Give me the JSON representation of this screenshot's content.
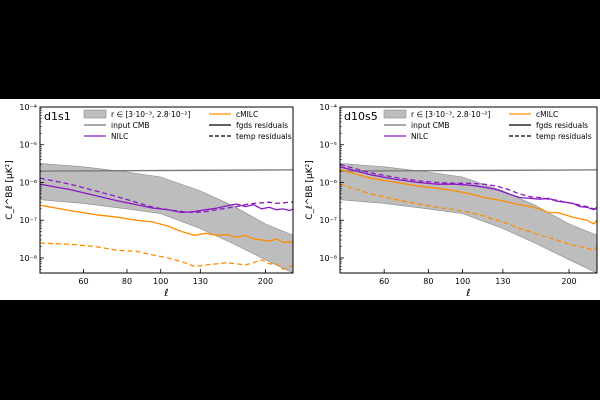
{
  "chart_data": [
    {
      "type": "line",
      "panel_label": "d1s1",
      "xscale": "log",
      "yscale": "log",
      "xlim": [
        45,
        240
      ],
      "ylim": [
        4e-09,
        0.0001
      ],
      "xticks": [
        {
          "value": 60,
          "label": "60"
        },
        {
          "value": 80,
          "label": "80"
        },
        {
          "value": 100,
          "label": "100"
        },
        {
          "value": 130,
          "label": "130"
        },
        {
          "value": 200,
          "label": "200"
        }
      ],
      "yticks": [
        {
          "value": 1e-08,
          "label": "10⁻⁸"
        },
        {
          "value": 1e-07,
          "label": "10⁻⁷"
        },
        {
          "value": 1e-06,
          "label": "10⁻⁶"
        },
        {
          "value": 1e-05,
          "label": "10⁻⁵"
        },
        {
          "value": 0.0001,
          "label": "10⁻⁴"
        }
      ],
      "xlabel": "ℓ",
      "ylabel": "C_ℓ^BB [μK²]",
      "band": {
        "name": "r ∈ [3·10⁻³, 2.8·10⁻²]",
        "x": [
          45,
          60,
          80,
          100,
          130,
          160,
          200,
          240
        ],
        "upper": [
          3.2e-06,
          2.6e-06,
          1.9e-06,
          1.4e-06,
          6e-07,
          2.5e-07,
          8e-08,
          4e-08
        ],
        "lower": [
          3.5e-07,
          2.8e-07,
          2e-07,
          1.5e-07,
          6e-08,
          2.5e-08,
          9e-09,
          4e-09
        ]
      },
      "series": [
        {
          "name": "input CMB",
          "color": "#777777",
          "dash": "solid",
          "x": [
            45,
            240
          ],
          "y": [
            2e-06,
            2.15e-06
          ]
        },
        {
          "name": "NILC",
          "color": "#8b1ac4",
          "dash": "solid",
          "x": [
            45,
            55,
            65,
            75,
            85,
            95,
            105,
            115,
            125,
            135,
            145,
            155,
            165,
            175,
            185,
            195,
            205,
            215,
            225,
            235,
            240
          ],
          "y": [
            9e-07,
            6.5e-07,
            4.5e-07,
            3.3e-07,
            2.6e-07,
            2.1e-07,
            1.9e-07,
            1.6e-07,
            1.7e-07,
            1.9e-07,
            2.1e-07,
            2.4e-07,
            2.7e-07,
            2.3e-07,
            2.6e-07,
            2e-07,
            2.2e-07,
            1.9e-07,
            2e-07,
            1.8e-07,
            2e-07
          ]
        },
        {
          "name": "cMILC",
          "color": "#ff8c00",
          "dash": "solid",
          "x": [
            45,
            55,
            65,
            75,
            85,
            95,
            105,
            115,
            125,
            135,
            145,
            155,
            165,
            175,
            185,
            195,
            205,
            215,
            225,
            235,
            240
          ],
          "y": [
            2.5e-07,
            1.8e-07,
            1.4e-07,
            1.2e-07,
            1e-07,
            9e-08,
            7e-08,
            5e-08,
            4e-08,
            4.5e-08,
            4e-08,
            4.2e-08,
            3.5e-08,
            4e-08,
            3.2e-08,
            3e-08,
            2.8e-08,
            3.2e-08,
            2.6e-08,
            2.7e-08,
            2.5e-08
          ]
        },
        {
          "name": "NILC temp residuals",
          "color": "#8b1ac4",
          "dash": "dashed",
          "x": [
            45,
            55,
            65,
            75,
            85,
            95,
            105,
            115,
            125,
            135,
            145,
            155,
            165,
            175,
            185,
            195,
            205,
            215,
            225,
            235,
            240
          ],
          "y": [
            1.3e-06,
            9e-07,
            6e-07,
            4.2e-07,
            3e-07,
            2.2e-07,
            1.9e-07,
            1.7e-07,
            1.6e-07,
            1.7e-07,
            1.9e-07,
            2.1e-07,
            2.3e-07,
            2.6e-07,
            2.8e-07,
            2.9e-07,
            3e-07,
            2.8e-07,
            2.9e-07,
            3e-07,
            3e-07
          ]
        },
        {
          "name": "cMILC temp residuals",
          "color": "#ff8c00",
          "dash": "dashed",
          "x": [
            45,
            55,
            65,
            75,
            85,
            95,
            105,
            115,
            125,
            135,
            145,
            155,
            165,
            175,
            185,
            195,
            205,
            215,
            225,
            235,
            240
          ],
          "y": [
            2.5e-08,
            2.3e-08,
            2e-08,
            1.6e-08,
            1.5e-08,
            1.2e-08,
            1e-08,
            8e-09,
            6e-09,
            6.5e-09,
            7e-09,
            7.5e-09,
            7e-09,
            6.5e-09,
            7.5e-09,
            9e-09,
            7e-09,
            7e-09,
            5e-09,
            6e-09,
            6e-09
          ]
        }
      ],
      "legend": [
        {
          "label": "r ∈ [3·10⁻³, 2.8·10⁻²]",
          "kind": "band"
        },
        {
          "label": "cMILC",
          "kind": "line",
          "color": "#ff8c00",
          "dash": "solid"
        },
        {
          "label": "input CMB",
          "kind": "line",
          "color": "#777777",
          "dash": "solid"
        },
        {
          "label": "fgds residuals",
          "kind": "line",
          "color": "#000000",
          "dash": "solid"
        },
        {
          "label": "NILC",
          "kind": "line",
          "color": "#8b1ac4",
          "dash": "solid"
        },
        {
          "label": "temp residuals",
          "kind": "line",
          "color": "#000000",
          "dash": "dashed"
        }
      ]
    },
    {
      "type": "line",
      "panel_label": "d10s5",
      "xscale": "log",
      "yscale": "log",
      "xlim": [
        45,
        240
      ],
      "ylim": [
        4e-09,
        0.0001
      ],
      "xticks": [
        {
          "value": 60,
          "label": "60"
        },
        {
          "value": 80,
          "label": "80"
        },
        {
          "value": 100,
          "label": "100"
        },
        {
          "value": 130,
          "label": "130"
        },
        {
          "value": 200,
          "label": "200"
        }
      ],
      "yticks": [
        {
          "value": 1e-08,
          "label": "10⁻⁸"
        },
        {
          "value": 1e-07,
          "label": "10⁻⁷"
        },
        {
          "value": 1e-06,
          "label": "10⁻⁶"
        },
        {
          "value": 1e-05,
          "label": "10⁻⁵"
        },
        {
          "value": 0.0001,
          "label": "10⁻⁴"
        }
      ],
      "xlabel": "ℓ",
      "ylabel": "C_ℓ^BB [μK²]",
      "band": {
        "name": "r ∈ [3·10⁻³, 2.8·10⁻²]",
        "x": [
          45,
          60,
          80,
          100,
          130,
          160,
          200,
          240
        ],
        "upper": [
          3.2e-06,
          2.6e-06,
          1.9e-06,
          1.4e-06,
          6e-07,
          2.5e-07,
          8e-08,
          4e-08
        ],
        "lower": [
          3.5e-07,
          2.8e-07,
          2e-07,
          1.5e-07,
          6e-08,
          2.5e-08,
          9e-09,
          4e-09
        ]
      },
      "series": [
        {
          "name": "input CMB",
          "color": "#777777",
          "dash": "solid",
          "x": [
            45,
            240
          ],
          "y": [
            2e-06,
            2.15e-06
          ]
        },
        {
          "name": "NILC",
          "color": "#8b1ac4",
          "dash": "solid",
          "x": [
            45,
            55,
            65,
            75,
            85,
            95,
            105,
            115,
            125,
            135,
            145,
            155,
            165,
            175,
            185,
            195,
            205,
            215,
            225,
            235,
            240
          ],
          "y": [
            2.6e-06,
            1.6e-06,
            1.2e-06,
            1e-06,
            9e-07,
            9e-07,
            8.5e-07,
            7.5e-07,
            6.5e-07,
            5e-07,
            4e-07,
            3.8e-07,
            3.6e-07,
            3.8e-07,
            3.2e-07,
            3e-07,
            2.8e-07,
            2.3e-07,
            2.2e-07,
            1.9e-07,
            2.2e-07
          ]
        },
        {
          "name": "cMILC",
          "color": "#ff8c00",
          "dash": "solid",
          "x": [
            45,
            55,
            65,
            75,
            85,
            95,
            105,
            115,
            125,
            135,
            145,
            155,
            165,
            175,
            185,
            195,
            205,
            215,
            225,
            235,
            240
          ],
          "y": [
            2.2e-06,
            1.3e-06,
            1e-06,
            8e-07,
            7e-07,
            6e-07,
            5e-07,
            4e-07,
            3.5e-07,
            3e-07,
            2.6e-07,
            2.3e-07,
            2e-07,
            1.6e-07,
            1.6e-07,
            1.4e-07,
            1.2e-07,
            1.1e-07,
            1e-07,
            8e-08,
            1e-07
          ]
        },
        {
          "name": "NILC temp residuals",
          "color": "#8b1ac4",
          "dash": "dashed",
          "x": [
            45,
            55,
            65,
            75,
            85,
            95,
            105,
            115,
            125,
            135,
            145,
            155,
            165,
            175,
            185,
            195,
            205,
            215,
            225,
            235,
            240
          ],
          "y": [
            3e-06,
            1.8e-06,
            1.35e-06,
            1.1e-06,
            1e-06,
            9.5e-07,
            9.5e-07,
            9e-07,
            8e-07,
            6.5e-07,
            5e-07,
            4.2e-07,
            4e-07,
            3.6e-07,
            3.4e-07,
            3e-07,
            2.8e-07,
            2.5e-07,
            2.3e-07,
            2e-07,
            1.9e-07
          ]
        },
        {
          "name": "cMILC temp residuals",
          "color": "#ff8c00",
          "dash": "dashed",
          "x": [
            45,
            55,
            65,
            75,
            85,
            95,
            105,
            115,
            125,
            135,
            145,
            155,
            165,
            175,
            185,
            195,
            205,
            215,
            225,
            235,
            240
          ],
          "y": [
            9e-07,
            5e-07,
            3.5e-07,
            2.7e-07,
            2.2e-07,
            1.9e-07,
            1.6e-07,
            1.3e-07,
            1e-07,
            8e-08,
            6e-08,
            5e-08,
            4e-08,
            3.5e-08,
            3e-08,
            2.5e-08,
            2.2e-08,
            2e-08,
            1.8e-08,
            1.6e-08,
            2e-08
          ]
        }
      ],
      "legend": [
        {
          "label": "r ∈ [3·10⁻³, 2.8·10⁻²]",
          "kind": "band"
        },
        {
          "label": "cMILC",
          "kind": "line",
          "color": "#ff8c00",
          "dash": "solid"
        },
        {
          "label": "input CMB",
          "kind": "line",
          "color": "#777777",
          "dash": "solid"
        },
        {
          "label": "fgds residuals",
          "kind": "line",
          "color": "#000000",
          "dash": "solid"
        },
        {
          "label": "NILC",
          "kind": "line",
          "color": "#8b1ac4",
          "dash": "solid"
        },
        {
          "label": "temp residuals",
          "kind": "line",
          "color": "#000000",
          "dash": "dashed"
        }
      ]
    }
  ]
}
